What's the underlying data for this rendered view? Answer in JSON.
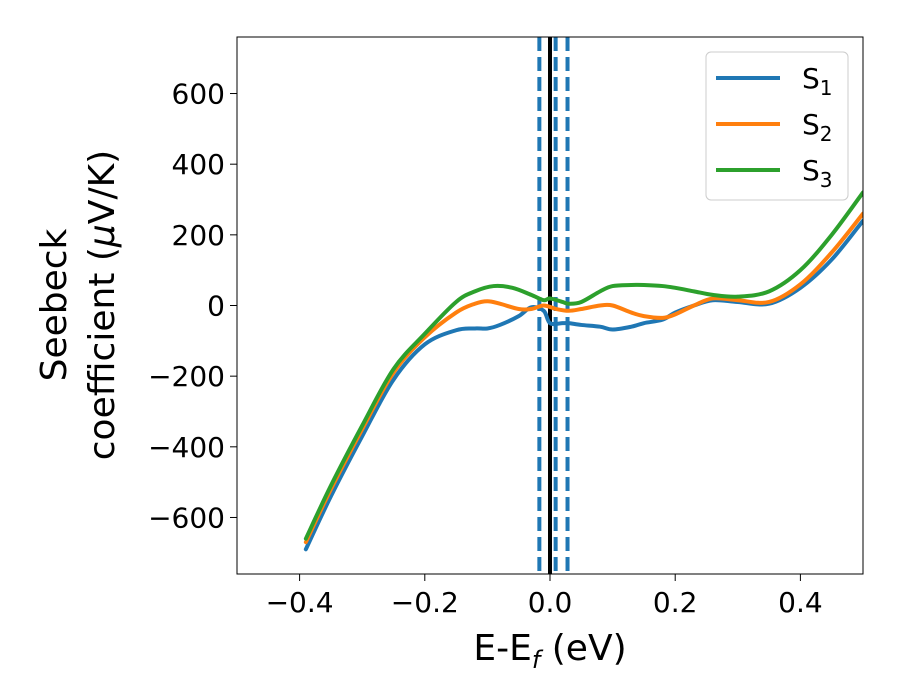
{
  "chart_data": {
    "type": "line",
    "xlabel": "E-E_f (eV)",
    "ylabel": "Seebeck coefficient (μV/K)",
    "xlim": [
      -0.5,
      0.5
    ],
    "ylim": [
      -760,
      760
    ],
    "xticks": [
      -0.4,
      -0.2,
      0.0,
      0.2,
      0.4
    ],
    "xtick_labels": [
      "−0.4",
      "−0.2",
      "0.0",
      "0.2",
      "0.4"
    ],
    "yticks": [
      -600,
      -400,
      -200,
      0,
      200,
      400,
      600
    ],
    "ytick_labels": [
      "−600",
      "−400",
      "−200",
      "0",
      "200",
      "400",
      "600"
    ],
    "legend_position": "top-right",
    "grid": false,
    "series": [
      {
        "name": "S1",
        "color": "#1f77b4",
        "x": [
          -0.39,
          -0.35,
          -0.3,
          -0.25,
          -0.2,
          -0.15,
          -0.12,
          -0.1,
          -0.08,
          -0.05,
          -0.03,
          -0.01,
          0.0,
          0.02,
          0.03,
          0.05,
          0.08,
          0.1,
          0.13,
          0.15,
          0.18,
          0.2,
          0.23,
          0.26,
          0.3,
          0.35,
          0.4,
          0.45,
          0.5
        ],
        "y": [
          -690,
          -540,
          -370,
          -210,
          -110,
          -70,
          -65,
          -65,
          -55,
          -30,
          -5,
          -15,
          -50,
          -50,
          -50,
          -55,
          -60,
          -68,
          -60,
          -50,
          -40,
          -20,
          0,
          15,
          10,
          5,
          50,
          130,
          240
        ]
      },
      {
        "name": "S2",
        "color": "#ff7f0e",
        "x": [
          -0.39,
          -0.35,
          -0.3,
          -0.25,
          -0.2,
          -0.15,
          -0.12,
          -0.1,
          -0.08,
          -0.05,
          -0.03,
          -0.01,
          0.01,
          0.03,
          0.05,
          0.08,
          0.1,
          0.13,
          0.15,
          0.18,
          0.2,
          0.23,
          0.26,
          0.3,
          0.35,
          0.4,
          0.45,
          0.5
        ],
        "y": [
          -670,
          -520,
          -350,
          -190,
          -90,
          -20,
          5,
          12,
          5,
          -10,
          -10,
          0,
          -10,
          -15,
          -10,
          0,
          0,
          -20,
          -30,
          -35,
          -25,
          0,
          20,
          15,
          10,
          60,
          150,
          260
        ]
      },
      {
        "name": "S3",
        "color": "#2ca02c",
        "x": [
          -0.39,
          -0.35,
          -0.3,
          -0.25,
          -0.2,
          -0.15,
          -0.12,
          -0.09,
          -0.06,
          -0.03,
          -0.01,
          0.0,
          0.02,
          0.03,
          0.05,
          0.08,
          0.1,
          0.13,
          0.15,
          0.18,
          0.2,
          0.23,
          0.26,
          0.3,
          0.35,
          0.4,
          0.45,
          0.5
        ],
        "y": [
          -660,
          -510,
          -340,
          -180,
          -80,
          10,
          40,
          55,
          50,
          30,
          15,
          20,
          10,
          5,
          10,
          40,
          55,
          58,
          58,
          55,
          50,
          40,
          30,
          25,
          40,
          100,
          200,
          320
        ]
      }
    ],
    "vlines": [
      {
        "x": 0.0,
        "color": "#000000",
        "style": "solid"
      },
      {
        "x": -0.017,
        "color": "#1f77b4",
        "style": "dashed"
      },
      {
        "x": 0.009,
        "color": "#1f77b4",
        "style": "dashed"
      },
      {
        "x": 0.028,
        "color": "#1f77b4",
        "style": "dashed"
      }
    ],
    "legend": [
      {
        "label": "S",
        "subscript": "1",
        "color": "#1f77b4"
      },
      {
        "label": "S",
        "subscript": "2",
        "color": "#ff7f0e"
      },
      {
        "label": "S",
        "subscript": "3",
        "color": "#2ca02c"
      }
    ],
    "ylabel_line1": "Seebeck",
    "ylabel_line2_prefix": "coefficient  (",
    "ylabel_mu": "μ",
    "ylabel_line2_suffix": "V/K)",
    "xlabel_main": "E-E",
    "xlabel_sub": "f",
    "xlabel_suffix": " (eV)"
  }
}
